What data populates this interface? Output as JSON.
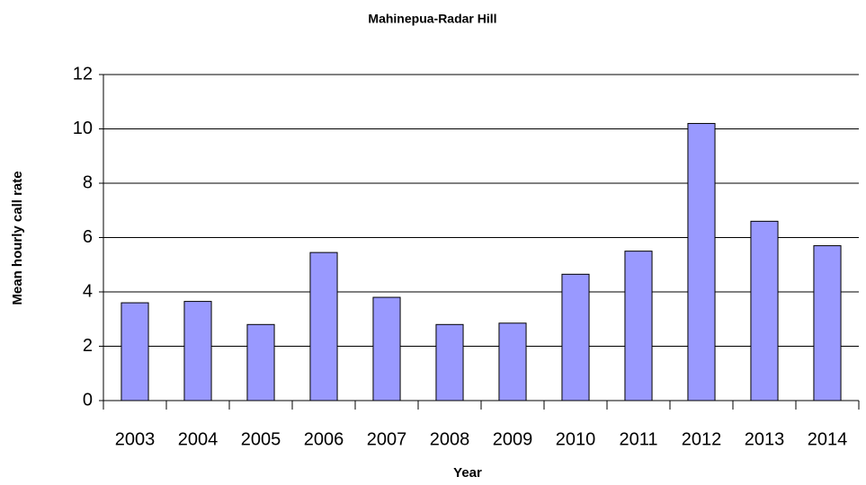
{
  "chart_data": {
    "type": "bar",
    "title": "Mahinepua-Radar Hill",
    "x_label": "Year",
    "y_label": "Mean hourly call rate",
    "categories": [
      "2003",
      "2004",
      "2005",
      "2006",
      "2007",
      "2008",
      "2009",
      "2010",
      "2011",
      "2012",
      "2013",
      "2014"
    ],
    "values": [
      3.6,
      3.65,
      2.8,
      5.45,
      3.8,
      2.8,
      2.85,
      4.65,
      5.5,
      10.2,
      6.6,
      5.7
    ],
    "color": "#9999ff",
    "ylim": [
      0,
      12
    ],
    "yticks": [
      0,
      2,
      4,
      6,
      8,
      10,
      12
    ],
    "grid": true
  }
}
